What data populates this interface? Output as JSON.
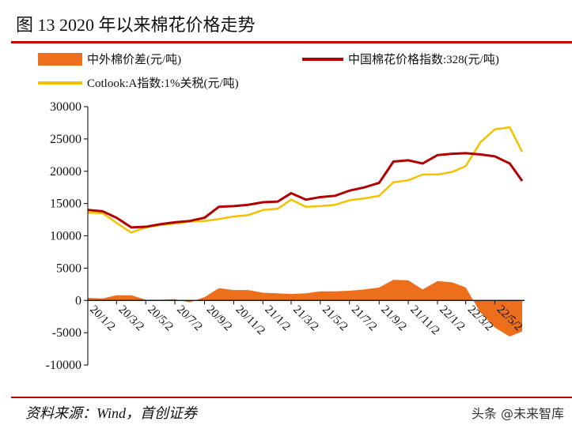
{
  "title": "图 13 2020 年以来棉花价格走势",
  "source": "资料来源：Wind，首创证券",
  "watermark": "头条 @未来智库",
  "chart_data": {
    "type": "line",
    "ylim": [
      -10000,
      30000
    ],
    "yticks": [
      30000,
      25000,
      20000,
      15000,
      10000,
      5000,
      0,
      -5000,
      -10000
    ],
    "xtick_labels": [
      "20/1/2",
      "20/3/2",
      "20/5/2",
      "20/7/2",
      "20/9/2",
      "20/11/2",
      "21/1/2",
      "21/3/2",
      "21/5/2",
      "21/7/2",
      "21/9/2",
      "21/11/2",
      "22/1/2",
      "22/3/2",
      "22/5/2"
    ],
    "xtick_dates": [
      "2020-01-02",
      "2020-03-02",
      "2020-05-02",
      "2020-07-02",
      "2020-09-02",
      "2020-11-02",
      "2021-01-02",
      "2021-03-02",
      "2021-05-02",
      "2021-07-02",
      "2021-09-02",
      "2021-11-02",
      "2022-01-02",
      "2022-03-02",
      "2022-05-02"
    ],
    "x": [
      "2020-01-02",
      "2020-02-02",
      "2020-03-02",
      "2020-04-02",
      "2020-05-02",
      "2020-06-02",
      "2020-07-02",
      "2020-08-02",
      "2020-09-02",
      "2020-10-02",
      "2020-11-02",
      "2020-12-02",
      "2021-01-02",
      "2021-02-02",
      "2021-03-02",
      "2021-04-02",
      "2021-05-02",
      "2021-06-02",
      "2021-07-02",
      "2021-08-02",
      "2021-09-02",
      "2021-10-02",
      "2021-11-02",
      "2021-12-02",
      "2022-01-02",
      "2022-02-02",
      "2022-03-02",
      "2022-04-02",
      "2022-05-02",
      "2022-06-02",
      "2022-06-28"
    ],
    "series": [
      {
        "name": "中外棉价差(元/吨)",
        "type": "area",
        "color": "#ED6E1B",
        "values": [
          400,
          300,
          800,
          800,
          100,
          100,
          200,
          -300,
          500,
          1900,
          1600,
          1600,
          1200,
          1100,
          1000,
          1100,
          1400,
          1400,
          1500,
          1700,
          2000,
          3200,
          3100,
          1700,
          3000,
          2800,
          2000,
          -1900,
          -4200,
          -5600,
          -4800
        ]
      },
      {
        "name": "中国棉花价格指数:328(元/吨)",
        "type": "line",
        "color": "#B00000",
        "values": [
          14000,
          13800,
          12800,
          11300,
          11400,
          11800,
          12100,
          12300,
          12800,
          14500,
          14600,
          14800,
          15200,
          15300,
          16600,
          15600,
          16000,
          16200,
          17000,
          17500,
          18200,
          21500,
          21700,
          21200,
          22500,
          22700,
          22800,
          22600,
          22300,
          21200,
          18500
        ]
      },
      {
        "name": "Cotlook:A指数:1%关税(元/吨)",
        "type": "line",
        "color": "#F2C200",
        "values": [
          13600,
          13500,
          12000,
          10500,
          11300,
          11700,
          11900,
          12200,
          12300,
          12600,
          13000,
          13200,
          14000,
          14200,
          15600,
          14500,
          14600,
          14800,
          15500,
          15800,
          16200,
          18300,
          18600,
          19500,
          19500,
          19900,
          20800,
          24500,
          26500,
          26800,
          23000
        ]
      }
    ],
    "legend": "top",
    "grid": false
  }
}
